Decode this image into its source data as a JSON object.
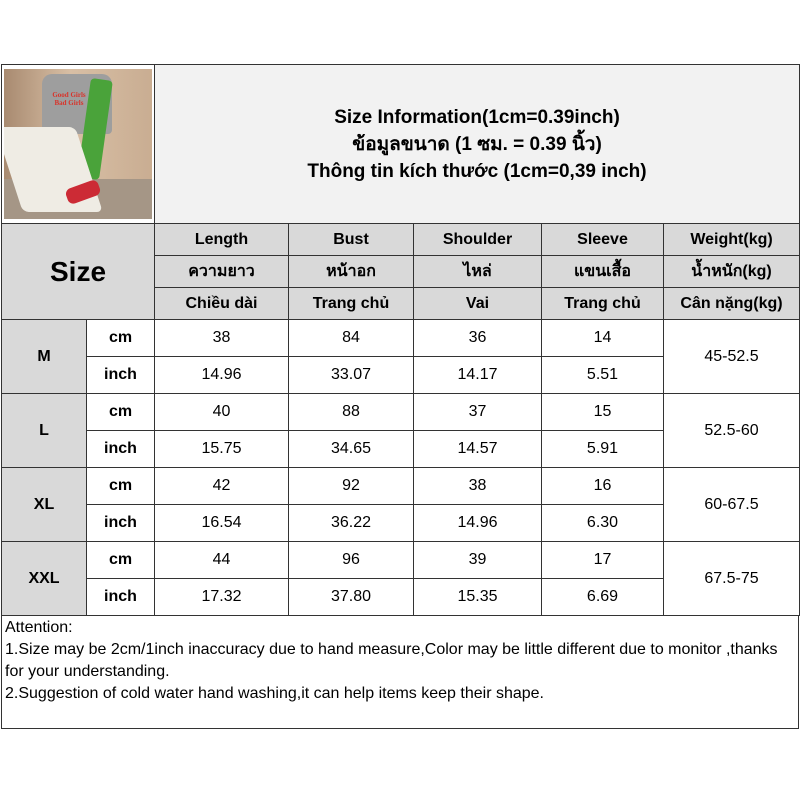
{
  "title": {
    "line1": "Size Information(1cm=0.39inch)",
    "line2": "ข้อมูลขนาด (1 ซม. = 0.39 นิ้ว)",
    "line3": "Thông tin kích thước (1cm=0,39 inch)"
  },
  "photo": {
    "shirt_text": "Good Girls Bad Girls"
  },
  "size_label": "Size",
  "columns": [
    {
      "en": "Length",
      "th": "ความยาว",
      "vi": "Chiều dài"
    },
    {
      "en": "Bust",
      "th": "หน้าอก",
      "vi": "Trang chủ"
    },
    {
      "en": "Shoulder",
      "th": "ไหล่",
      "vi": "Vai"
    },
    {
      "en": "Sleeve",
      "th": "แขนเสื้อ",
      "vi": "Trang chủ"
    },
    {
      "en": "Weight(kg)",
      "th": "น้ำหนัก(kg)",
      "vi": "Cân nặng(kg)"
    }
  ],
  "rows": [
    {
      "size": "M",
      "cm_label": "cm",
      "inch_label": "inch",
      "cm": [
        "38",
        "84",
        "36",
        "14"
      ],
      "inch": [
        "14.96",
        "33.07",
        "14.17",
        "5.51"
      ],
      "weight": "45-52.5"
    },
    {
      "size": "L",
      "cm_label": "cm",
      "inch_label": "inch",
      "cm": [
        "40",
        "88",
        "37",
        "15"
      ],
      "inch": [
        "15.75",
        "34.65",
        "14.57",
        "5.91"
      ],
      "weight": "52.5-60"
    },
    {
      "size": "XL",
      "cm_label": "cm",
      "inch_label": "inch",
      "cm": [
        "42",
        "92",
        "38",
        "16"
      ],
      "inch": [
        "16.54",
        "36.22",
        "14.96",
        "6.30"
      ],
      "weight": "60-67.5"
    },
    {
      "size": "XXL",
      "cm_label": "cm",
      "inch_label": "inch",
      "cm": [
        "44",
        "96",
        "39",
        "17"
      ],
      "inch": [
        "17.32",
        "37.80",
        "15.35",
        "6.69"
      ],
      "weight": "67.5-75"
    }
  ],
  "attention": {
    "heading": "Attention:",
    "note1": "1.Size may be 2cm/1inch inaccuracy due to hand measure,Color may be little different due to monitor ,thanks for your understanding.",
    "note2": "2.Suggestion of cold water hand washing,it can help items keep their shape."
  }
}
